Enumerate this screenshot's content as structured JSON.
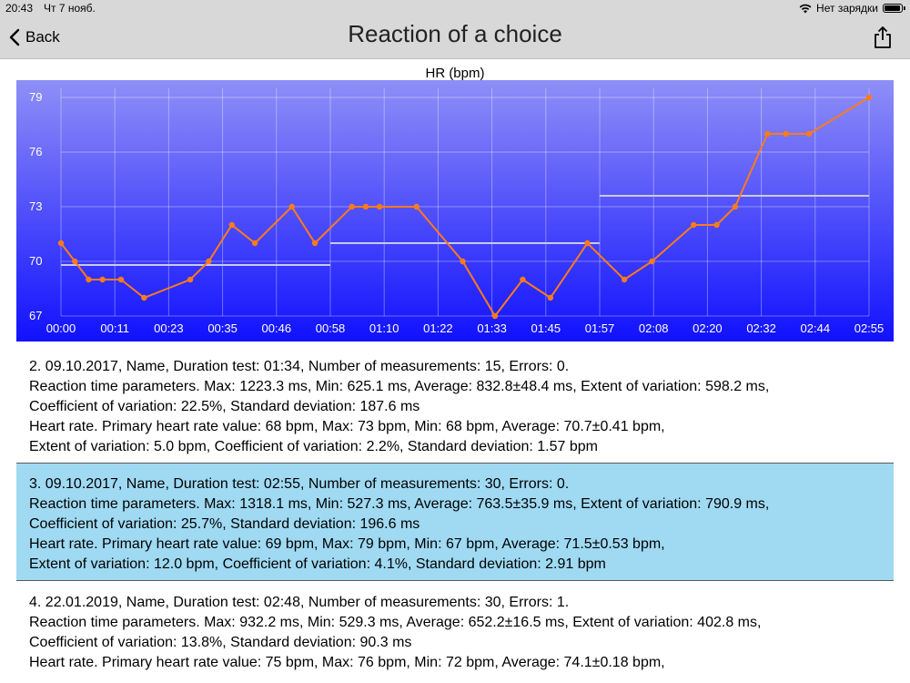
{
  "status_bar": {
    "time": "20:43",
    "date": "Чт 7 нояб.",
    "charging": "Нет зарядки",
    "battery_percent": 95
  },
  "nav": {
    "back_label": "Back",
    "title": "Reaction of a choice"
  },
  "colors": {
    "plot_top": "#8f8ff7",
    "plot_bottom": "#1111ff",
    "line": "#ff7a1a",
    "avg_line": "#c8c8e8",
    "selected_row": "#9fd9f2"
  },
  "chart_data": {
    "type": "line",
    "title": "HR (bpm)",
    "ylim": [
      67,
      79
    ],
    "yticks": [
      67,
      70,
      73,
      76,
      79
    ],
    "xlim": [
      0,
      175
    ],
    "x_tick_labels": [
      "00:00",
      "00:11",
      "00:23",
      "00:35",
      "00:46",
      "00:58",
      "01:10",
      "01:22",
      "01:33",
      "01:45",
      "01:57",
      "02:08",
      "02:20",
      "02:32",
      "02:44",
      "02:55"
    ],
    "x_tick_values": [
      0,
      11.667,
      23.333,
      35,
      46.667,
      58.333,
      70,
      81.667,
      93.333,
      105,
      116.667,
      128.333,
      140,
      151.667,
      163.333,
      175
    ],
    "grid": true,
    "series": [
      {
        "x": [
          0,
          3,
          6,
          9,
          13,
          18,
          28,
          32,
          37,
          42,
          50,
          55,
          63,
          66,
          69,
          77,
          87,
          94,
          100,
          106,
          114,
          122,
          128,
          137,
          142,
          146,
          153,
          157,
          162,
          175
        ],
        "y": [
          71,
          70,
          69,
          69,
          69,
          68,
          69,
          70,
          72,
          71,
          73,
          71,
          73,
          73,
          73,
          73,
          70,
          67,
          69,
          68,
          71,
          69,
          70,
          72,
          72,
          73,
          77,
          77,
          77,
          79
        ]
      }
    ],
    "averages": [
      {
        "x": [
          0,
          58.333
        ],
        "y": 69.8
      },
      {
        "x": [
          58.333,
          116.667
        ],
        "y": 71
      },
      {
        "x": [
          116.667,
          175
        ],
        "y": 73.6
      }
    ]
  },
  "records": [
    {
      "lines": [
        "2. 09.10.2017, Name, Duration test: 01:34, Number of measurements: 15, Errors: 0.",
        "Reaction time parameters. Max: 1223.3 ms, Min: 625.1 ms, Average: 832.8±48.4 ms, Extent of variation: 598.2 ms,",
        "Coefficient of variation: 22.5%, Standard deviation: 187.6 ms",
        "Heart rate. Primary heart rate value: 68 bpm, Max: 73 bpm, Min: 68 bpm, Average: 70.7±0.41 bpm,",
        "Extent of variation: 5.0 bpm, Coefficient of variation: 2.2%, Standard deviation: 1.57 bpm"
      ]
    },
    {
      "lines": [
        "3. 09.10.2017, Name, Duration test: 02:55, Number of measurements: 30, Errors: 0.",
        "Reaction time parameters. Max: 1318.1 ms, Min: 527.3 ms, Average: 763.5±35.9 ms, Extent of variation: 790.9 ms,",
        "Coefficient of variation: 25.7%, Standard deviation: 196.6 ms",
        "Heart rate. Primary heart rate value: 69 bpm, Max: 79 bpm, Min: 67 bpm, Average: 71.5±0.53 bpm,",
        "Extent of variation: 12.0 bpm, Coefficient of variation: 4.1%, Standard deviation: 2.91 bpm"
      ]
    },
    {
      "lines": [
        "4. 22.01.2019, Name, Duration test: 02:48, Number of measurements: 30, Errors: 1.",
        "Reaction time parameters. Max: 932.2 ms, Min: 529.3 ms, Average: 652.2±16.5 ms, Extent of variation: 402.8 ms,",
        "Coefficient of variation: 13.8%, Standard deviation: 90.3 ms",
        "Heart rate. Primary heart rate value: 75 bpm, Max: 76 bpm, Min: 72 bpm, Average: 74.1±0.18 bpm,"
      ]
    }
  ]
}
